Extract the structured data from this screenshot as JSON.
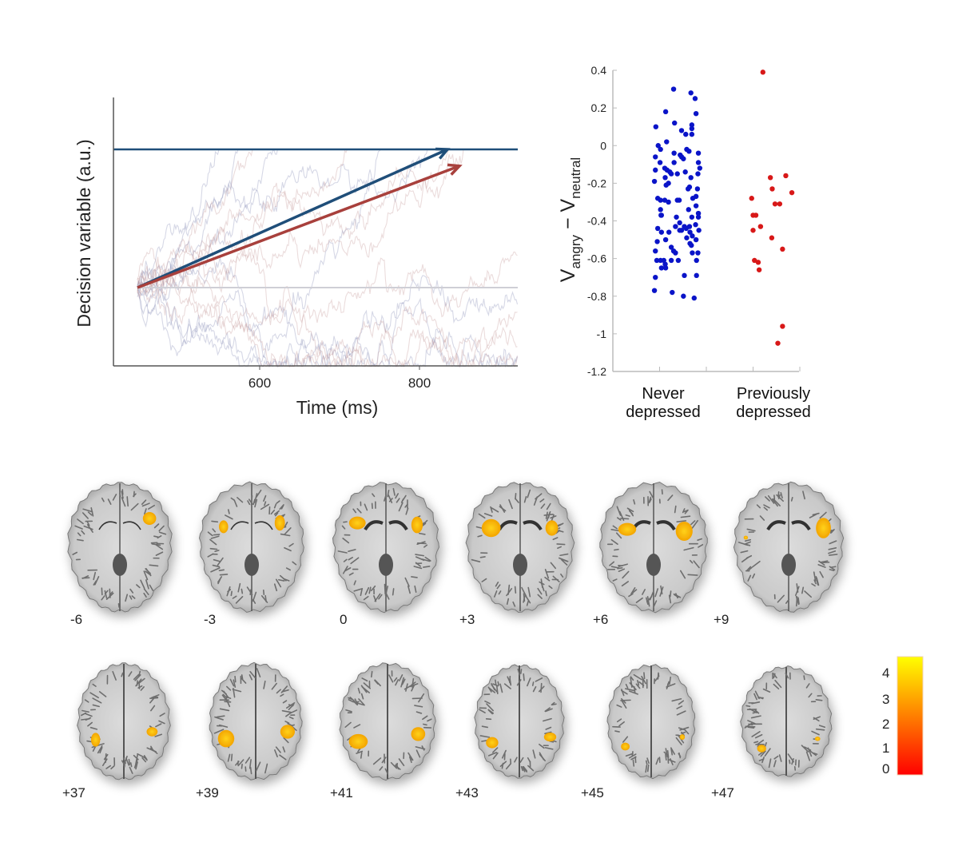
{
  "chart_data": [
    {
      "type": "line",
      "panel": "decision-variable-model",
      "xlabel": "Time (ms)",
      "ylabel": "Decision variable (a.u.)",
      "xticks": [
        600,
        800
      ],
      "xlim": [
        417,
        923
      ],
      "ylim_au": [
        -0.57,
        1.38
      ],
      "start": {
        "time": 447,
        "value": 0
      },
      "bound_value": 1,
      "arrows": [
        {
          "color": "#1f4e79",
          "end": {
            "time": 835,
            "value": 1.0
          }
        },
        {
          "color": "#a8403c",
          "end": {
            "time": 850,
            "value": 0.88
          }
        }
      ],
      "trace_colors": [
        "#8a8fb8",
        "#c79a9a"
      ],
      "grid": false
    },
    {
      "type": "scatter",
      "panel": "group-difference",
      "ylabel_main": "V",
      "ylabel_sub1": "angry",
      "ylabel_minus": " − V",
      "ylabel_sub2": "neutral",
      "ylim": [
        -1.2,
        0.4
      ],
      "yticks": [
        "0.4",
        "0.2",
        "0",
        "-0.2",
        "-0.4",
        "-0.6",
        "-0.8",
        "-1",
        "-1.2"
      ],
      "xlim": [
        0,
        4.1
      ],
      "xticks": [
        1,
        2,
        3,
        4
      ],
      "categories": [
        {
          "line1": "Never",
          "line2": "depressed"
        },
        {
          "line1": "Previously",
          "line2": "depressed"
        }
      ],
      "grid": false,
      "series": [
        {
          "color": "#0a14c8",
          "points": [
            [
              1.3,
              0.3
            ],
            [
              1.67,
              0.28
            ],
            [
              1.76,
              0.25
            ],
            [
              1.13,
              0.18
            ],
            [
              1.78,
              0.17
            ],
            [
              1.32,
              0.12
            ],
            [
              0.92,
              0.1
            ],
            [
              1.69,
              0.11
            ],
            [
              1.69,
              0.09
            ],
            [
              1.47,
              0.08
            ],
            [
              1.56,
              0.06
            ],
            [
              1.69,
              0.06
            ],
            [
              1.15,
              0.02
            ],
            [
              0.97,
              0.0
            ],
            [
              1.02,
              -0.02
            ],
            [
              1.31,
              -0.04
            ],
            [
              1.44,
              -0.05
            ],
            [
              1.58,
              -0.02
            ],
            [
              1.63,
              -0.03
            ],
            [
              1.83,
              -0.04
            ],
            [
              0.91,
              -0.06
            ],
            [
              1.47,
              -0.06
            ],
            [
              1.51,
              -0.07
            ],
            [
              1.83,
              -0.09
            ],
            [
              1.31,
              -0.09
            ],
            [
              1.01,
              -0.09
            ],
            [
              1.86,
              -0.12
            ],
            [
              0.91,
              -0.13
            ],
            [
              1.11,
              -0.12
            ],
            [
              1.16,
              -0.13
            ],
            [
              1.22,
              -0.14
            ],
            [
              1.55,
              -0.14
            ],
            [
              1.82,
              -0.15
            ],
            [
              1.12,
              -0.17
            ],
            [
              1.25,
              -0.15
            ],
            [
              1.38,
              -0.15
            ],
            [
              1.67,
              -0.17
            ],
            [
              0.89,
              -0.19
            ],
            [
              1.19,
              -0.2
            ],
            [
              1.14,
              -0.21
            ],
            [
              1.64,
              -0.22
            ],
            [
              1.61,
              -0.23
            ],
            [
              1.81,
              -0.23
            ],
            [
              1.78,
              -0.27
            ],
            [
              0.96,
              -0.28
            ],
            [
              1.02,
              -0.29
            ],
            [
              1.11,
              -0.29
            ],
            [
              1.19,
              -0.3
            ],
            [
              1.38,
              -0.29
            ],
            [
              1.42,
              -0.29
            ],
            [
              1.71,
              -0.28
            ],
            [
              1.78,
              -0.32
            ],
            [
              1.02,
              -0.34
            ],
            [
              1.04,
              -0.37
            ],
            [
              1.36,
              -0.38
            ],
            [
              1.62,
              -0.34
            ],
            [
              1.69,
              -0.38
            ],
            [
              1.83,
              -0.36
            ],
            [
              1.83,
              -0.38
            ],
            [
              1.43,
              -0.41
            ],
            [
              1.03,
              -0.37
            ],
            [
              1.53,
              -0.43
            ],
            [
              1.77,
              -0.42
            ],
            [
              1.64,
              -0.43
            ],
            [
              0.96,
              -0.44
            ],
            [
              1.34,
              -0.43
            ],
            [
              1.43,
              -0.45
            ],
            [
              1.57,
              -0.44
            ],
            [
              1.65,
              -0.46
            ],
            [
              1.84,
              -0.45
            ],
            [
              1.04,
              -0.46
            ],
            [
              1.2,
              -0.46
            ],
            [
              1.47,
              -0.45
            ],
            [
              1.7,
              -0.48
            ],
            [
              0.95,
              -0.51
            ],
            [
              1.13,
              -0.5
            ],
            [
              1.58,
              -0.49
            ],
            [
              1.78,
              -0.5
            ],
            [
              1.65,
              -0.52
            ],
            [
              1.68,
              -0.53
            ],
            [
              0.91,
              -0.56
            ],
            [
              1.25,
              -0.54
            ],
            [
              1.3,
              -0.56
            ],
            [
              1.34,
              -0.57
            ],
            [
              1.7,
              -0.57
            ],
            [
              1.82,
              -0.57
            ],
            [
              0.94,
              -0.61
            ],
            [
              1.02,
              -0.61
            ],
            [
              1.09,
              -0.61
            ],
            [
              1.25,
              -0.61
            ],
            [
              1.4,
              -0.61
            ],
            [
              1.79,
              -0.61
            ],
            [
              1.04,
              -0.65
            ],
            [
              1.12,
              -0.63
            ],
            [
              1.13,
              -0.65
            ],
            [
              0.91,
              -0.7
            ],
            [
              1.53,
              -0.69
            ],
            [
              1.79,
              -0.69
            ],
            [
              0.89,
              -0.77
            ],
            [
              1.27,
              -0.78
            ],
            [
              1.51,
              -0.8
            ],
            [
              1.74,
              -0.81
            ]
          ]
        },
        {
          "color": "#d81818",
          "points": [
            [
              3.21,
              0.39
            ],
            [
              3.7,
              -0.16
            ],
            [
              3.37,
              -0.17
            ],
            [
              3.41,
              -0.23
            ],
            [
              3.83,
              -0.25
            ],
            [
              2.97,
              -0.28
            ],
            [
              3.47,
              -0.31
            ],
            [
              3.57,
              -0.31
            ],
            [
              3.0,
              -0.37
            ],
            [
              3.06,
              -0.37
            ],
            [
              3.16,
              -0.43
            ],
            [
              3.0,
              -0.45
            ],
            [
              3.4,
              -0.49
            ],
            [
              3.63,
              -0.55
            ],
            [
              3.03,
              -0.61
            ],
            [
              3.11,
              -0.62
            ],
            [
              3.13,
              -0.66
            ],
            [
              3.63,
              -0.96
            ],
            [
              3.53,
              -1.05
            ]
          ]
        }
      ]
    },
    {
      "type": "heatmap",
      "panel": "brain-slices",
      "slices_row1": [
        "-6",
        "-3",
        "0",
        "+3",
        "+6",
        "+9"
      ],
      "slices_row2": [
        "+37",
        "+39",
        "+41",
        "+43",
        "+45",
        "+47"
      ],
      "colorbar": {
        "ticks": [
          "4",
          "3",
          "2",
          "1",
          "0"
        ],
        "range": [
          0,
          4.3
        ],
        "colors": [
          "#ff0000",
          "#ff8c00",
          "#ffff00"
        ]
      }
    }
  ]
}
